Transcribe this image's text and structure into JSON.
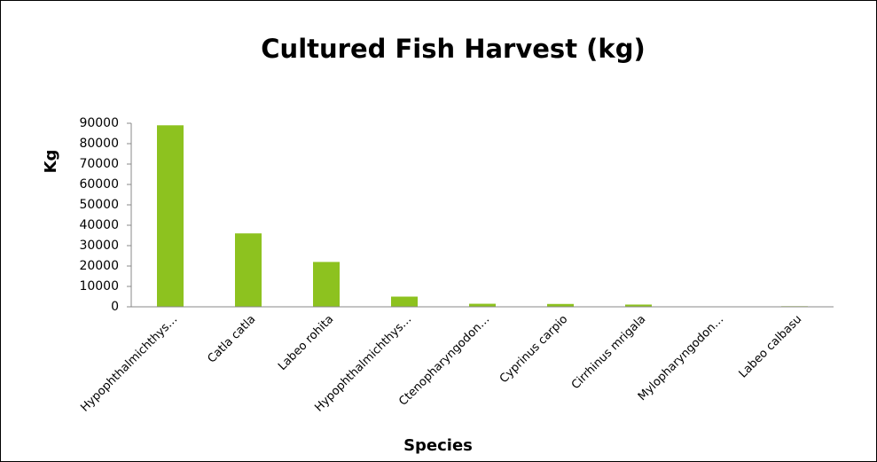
{
  "chart_data": {
    "type": "bar",
    "title": "Cultured Fish Harvest (kg)",
    "x_label": "Species",
    "y_label": "Kg",
    "categories": [
      "Hypophthalmichthys…",
      "Catla catla",
      "Labeo rohita",
      "Hypophthalmichthys…",
      "Ctenopharyngodon…",
      "Cyprinus carpio",
      "Cirrhinus mrigala",
      "Mylopharyngodon…",
      "Labeo calbasu"
    ],
    "values": [
      89000,
      36000,
      22000,
      5000,
      1500,
      1400,
      1100,
      200,
      300
    ],
    "color": "#8dc21f",
    "ylim": [
      0,
      90000
    ],
    "yticks": [
      0,
      10000,
      20000,
      30000,
      40000,
      50000,
      60000,
      70000,
      80000,
      90000
    ],
    "grid": false
  }
}
